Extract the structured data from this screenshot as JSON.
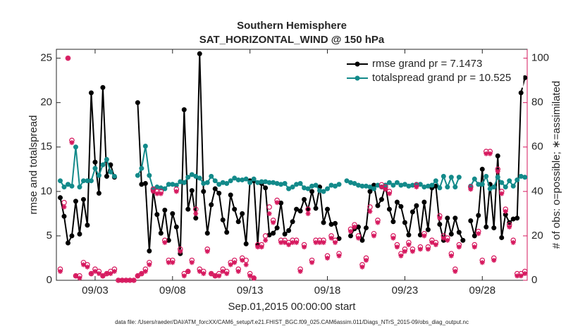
{
  "chart_data": {
    "type": "line",
    "title": "Southern Hemisphere",
    "subtitle": "SAT_HORIZONTAL_WIND @ 150 hPa",
    "x_label": "Sep.01,2015 00:00:00 start",
    "y_label": "rmse and totalspread",
    "y2_label": "# of obs: o=possible; ∗=assimilated",
    "footnote": "data file: /Users/raeder/DAI/ATM_forcXX/CAM6_setup/f.e21.FHIST_BGC.f09_025.CAM6assim.011/Diags_NTrS_2015-09/obs_diag_output.nc",
    "xlim": [
      0.5,
      30.9
    ],
    "xticks": [
      {
        "value": 3,
        "label": "09/03"
      },
      {
        "value": 8,
        "label": "09/08"
      },
      {
        "value": 13,
        "label": "09/13"
      },
      {
        "value": 18,
        "label": "09/18"
      },
      {
        "value": 23,
        "label": "09/23"
      },
      {
        "value": 28,
        "label": "09/28"
      }
    ],
    "ylim": [
      0,
      26
    ],
    "yticks": [
      0,
      5,
      10,
      15,
      20,
      25
    ],
    "y2lim": [
      0,
      104
    ],
    "y2ticks": [
      0,
      20,
      40,
      60,
      80,
      100
    ],
    "y2_color": "#d6185e",
    "legend": "upper right",
    "legend_text_color": "#0000ff",
    "x": [
      0.75,
      1,
      1.25,
      1.5,
      1.75,
      2,
      2.25,
      2.5,
      2.75,
      3,
      3.25,
      3.5,
      3.75,
      4,
      4.25,
      4.5,
      4.75,
      5,
      5.25,
      5.5,
      5.75,
      6,
      6.25,
      6.5,
      6.75,
      7,
      7.25,
      7.5,
      7.75,
      8,
      8.25,
      8.5,
      8.75,
      9,
      9.25,
      9.5,
      9.75,
      10,
      10.25,
      10.5,
      10.75,
      11,
      11.25,
      11.5,
      11.75,
      12,
      12.25,
      12.5,
      12.75,
      13,
      13.25,
      13.5,
      13.75,
      14,
      14.25,
      14.5,
      14.75,
      15,
      15.25,
      15.5,
      15.75,
      16,
      16.25,
      16.5,
      16.75,
      17,
      17.25,
      17.5,
      17.75,
      18,
      18.25,
      18.5,
      18.75,
      19,
      19.25,
      19.5,
      19.75,
      20,
      20.25,
      20.5,
      20.75,
      21,
      21.25,
      21.5,
      21.75,
      22,
      22.25,
      22.5,
      22.75,
      23,
      23.25,
      23.5,
      23.75,
      24,
      24.25,
      24.5,
      24.75,
      25,
      25.25,
      25.5,
      25.75,
      26,
      26.25,
      26.5,
      26.75,
      27,
      27.25,
      27.5,
      27.75,
      28,
      28.25,
      28.5,
      28.75,
      29,
      29.25,
      29.5,
      29.75,
      30,
      30.25,
      30.5,
      30.75
    ],
    "series": [
      {
        "name": "rmse grand pr = 7.1473",
        "color": "#000000",
        "marker": "dot",
        "values": [
          9.3,
          7.2,
          4.2,
          5.0,
          8.9,
          5.2,
          9.1,
          6.2,
          21.1,
          13.3,
          9.8,
          21.7,
          11.7,
          13.0,
          11.6,
          null,
          null,
          null,
          null,
          null,
          20.0,
          10.8,
          10.9,
          3.3,
          10.1,
          7.4,
          5.3,
          7.9,
          4.5,
          7.5,
          6.0,
          3.0,
          19.2,
          8.0,
          10.1,
          7.0,
          25.5,
          10.0,
          5.3,
          8.5,
          10.3,
          9.8,
          6.8,
          5.4,
          9.6,
          8.0,
          6.6,
          7.5,
          4.1,
          11.2,
          11.2,
          4.0,
          10.9,
          10.4,
          5.1,
          5.3,
          5.9,
          8.7,
          5.2,
          5.6,
          6.6,
          8.0,
          7.8,
          9.1,
          8.0,
          10.0,
          8.1,
          10.5,
          6.5,
          8.0,
          6.3,
          6.4,
          4.7,
          null,
          null,
          5.0,
          5.8,
          6.0,
          4.5,
          5.9,
          10.0,
          10.7,
          8.4,
          9.1,
          10.7,
          8.0,
          6.6,
          8.8,
          8.3,
          6.5,
          5.1,
          7.7,
          8.4,
          5.1,
          8.8,
          5.7,
          10.4,
          10.6,
          6.3,
          4.5,
          7.0,
          5.2,
          7.0,
          5.4,
          4.5,
          null,
          6.7,
          5.0,
          7.3,
          12.5,
          6.0,
          10.8,
          5.9,
          14.0,
          4.8,
          7.4,
          6.5,
          6.9,
          7.0,
          21.1,
          22.8
        ]
      },
      {
        "name": "totalspread grand pr = 10.525",
        "color": "#138a8a",
        "marker": "dot",
        "values": [
          11.2,
          10.5,
          10.8,
          10.6,
          15.0,
          10.5,
          11.2,
          11.2,
          11.2,
          12.6,
          11.8,
          13.0,
          13.6,
          12.2,
          11.7,
          null,
          null,
          null,
          null,
          null,
          11.8,
          12.6,
          15.1,
          11.8,
          10.3,
          10.5,
          10.4,
          10.3,
          10.8,
          10.8,
          10.7,
          11.1,
          11.0,
          11.6,
          11.9,
          11.7,
          11.5,
          10.9,
          11.0,
          11.7,
          11.2,
          10.8,
          11.0,
          10.9,
          11.2,
          11.5,
          11.3,
          11.3,
          11.4,
          11.0,
          11.4,
          11.0,
          11.1,
          11.1,
          11.0,
          11.0,
          10.9,
          10.8,
          10.9,
          10.3,
          10.5,
          10.8,
          10.9,
          10.4,
          10.3,
          10.6,
          10.7,
          10.1,
          10.0,
          10.3,
          10.7,
          10.6,
          10.8,
          null,
          11.2,
          11.0,
          10.9,
          10.7,
          10.6,
          10.6,
          10.5,
          10.3,
          10.7,
          10.5,
          10.7,
          11.0,
          10.7,
          11.0,
          10.7,
          10.8,
          10.6,
          10.7,
          10.8,
          10.8,
          10.5,
          10.6,
          10.7,
          11.2,
          10.4,
          11.7,
          10.5,
          11.6,
          10.5,
          11.6,
          null,
          null,
          10.6,
          11.4,
          10.8,
          10.8,
          11.7,
          10.3,
          10.5,
          11.6,
          11.0,
          10.5,
          11.2,
          10.6,
          11.3,
          11.7,
          11.6
        ]
      },
      {
        "color": "#d6185e",
        "axis": "y2",
        "marker": "circle",
        "values": [
          5,
          35,
          100,
          63,
          2,
          2,
          8,
          7,
          3,
          5,
          4,
          2,
          3,
          4,
          5,
          0,
          0,
          0,
          0,
          0,
          2,
          3,
          5,
          8,
          41,
          40,
          40,
          18,
          9,
          9,
          41,
          14,
          3,
          4,
          9,
          32,
          5,
          4,
          14,
          3,
          2,
          3,
          5,
          4,
          8,
          9,
          5,
          10,
          9,
          3,
          1,
          16,
          16,
          20,
          33,
          27,
          36,
          18,
          18,
          17,
          18,
          18,
          5,
          16,
          32,
          9,
          18,
          18,
          18,
          11,
          20,
          18,
          12,
          null,
          null,
          23,
          25,
          20,
          7,
          10,
          33,
          21,
          27,
          43,
          42,
          40,
          20,
          16,
          12,
          14,
          17,
          14,
          43,
          15,
          21,
          15,
          18,
          17,
          29,
          20,
          19,
          12,
          5,
          16,
          null,
          null,
          42,
          16,
          22,
          9,
          58,
          58,
          10,
          50,
          40,
          32,
          25,
          18,
          3,
          3,
          4
        ]
      },
      {
        "color": "#d6185e",
        "axis": "y2",
        "marker": "asterisk",
        "values": [
          4,
          33,
          100,
          62,
          2,
          1,
          7,
          6,
          3,
          4,
          3,
          2,
          3,
          3,
          4,
          0,
          0,
          0,
          0,
          0,
          2,
          3,
          4,
          7,
          40,
          39,
          39,
          17,
          8,
          8,
          40,
          13,
          2,
          4,
          8,
          30,
          4,
          3,
          13,
          3,
          2,
          2,
          4,
          3,
          7,
          8,
          4,
          9,
          7,
          2,
          1,
          15,
          15,
          18,
          30,
          26,
          35,
          17,
          17,
          16,
          17,
          17,
          4,
          15,
          30,
          8,
          17,
          17,
          17,
          10,
          19,
          17,
          11,
          null,
          null,
          22,
          24,
          19,
          6,
          9,
          31,
          20,
          26,
          42,
          41,
          39,
          19,
          15,
          11,
          13,
          16,
          13,
          42,
          14,
          20,
          14,
          17,
          16,
          28,
          19,
          18,
          11,
          4,
          15,
          null,
          null,
          41,
          15,
          21,
          8,
          57,
          57,
          9,
          49,
          39,
          31,
          24,
          17,
          2,
          2,
          3
        ]
      }
    ]
  }
}
